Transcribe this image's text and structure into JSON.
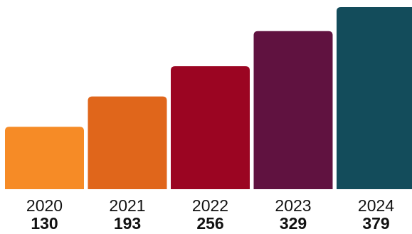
{
  "chart_data": {
    "type": "bar",
    "categories": [
      "2020",
      "2021",
      "2022",
      "2023",
      "2024"
    ],
    "values": [
      130,
      193,
      256,
      329,
      379
    ],
    "value_labels": [
      "130",
      "193",
      "256",
      "329",
      "379"
    ],
    "colors": [
      "#f68b26",
      "#e0661b",
      "#9b0522",
      "#601240",
      "#134c5b"
    ],
    "ylim": [
      0,
      379
    ],
    "grid": false,
    "legend": "none"
  }
}
